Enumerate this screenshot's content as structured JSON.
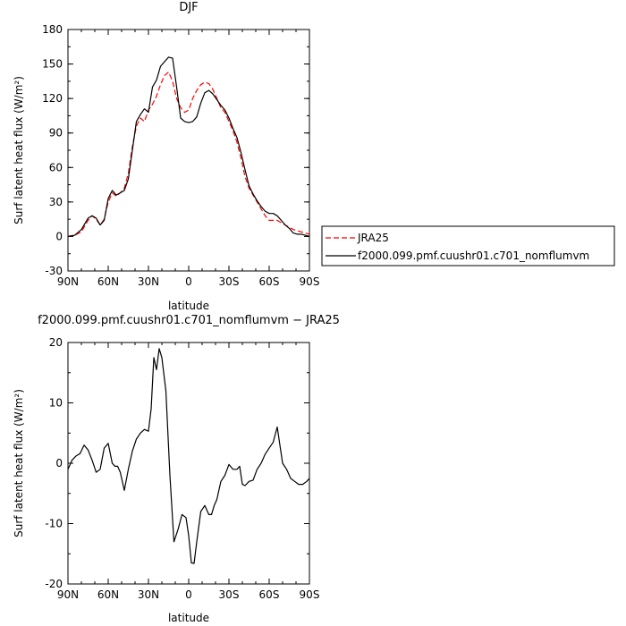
{
  "chart_data": [
    {
      "type": "line",
      "title": "DJF",
      "xlabel": "latitude",
      "ylabel": "Surf latent heat flux (W/m²)",
      "xlim": [
        90,
        -90
      ],
      "ylim": [
        -30,
        180
      ],
      "yticks": [
        -30,
        0,
        30,
        60,
        90,
        120,
        150,
        180
      ],
      "xticks": [
        90,
        60,
        30,
        0,
        -30,
        -60,
        -90
      ],
      "xtick_labels": [
        "90N",
        "60N",
        "30N",
        "0",
        "30S",
        "60S",
        "90S"
      ],
      "legend_position": "right",
      "series": [
        {
          "name": "JRA25",
          "color": "#ff0000",
          "dash": "dashed",
          "x": [
            90,
            85,
            80,
            75,
            72,
            69,
            66,
            63,
            60,
            57,
            54,
            51,
            48,
            45,
            42,
            39,
            36,
            33,
            30,
            27,
            24,
            21,
            18,
            15,
            12,
            9,
            6,
            3,
            0,
            -3,
            -6,
            -9,
            -12,
            -15,
            -18,
            -21,
            -24,
            -27,
            -30,
            -33,
            -36,
            -39,
            -42,
            -45,
            -48,
            -51,
            -54,
            -57,
            -60,
            -63,
            -66,
            -69,
            -72,
            -75,
            -78,
            -81,
            -84,
            -87,
            -90
          ],
          "y": [
            0,
            1,
            4,
            14,
            18,
            15,
            10,
            15,
            30,
            38,
            35,
            38,
            42,
            55,
            78,
            96,
            103,
            100,
            110,
            115,
            122,
            132,
            140,
            143,
            135,
            120,
            112,
            108,
            110,
            120,
            127,
            132,
            134,
            133,
            128,
            120,
            112,
            108,
            100,
            92,
            82,
            68,
            52,
            42,
            36,
            30,
            24,
            18,
            14,
            14,
            14,
            12,
            10,
            8,
            6,
            5,
            4,
            3,
            2
          ]
        },
        {
          "name": "f2000.099.pmf.cuushr01.c701_nomflumvm",
          "color": "#000000",
          "dash": "solid",
          "x": [
            90,
            85,
            80,
            75,
            72,
            69,
            66,
            63,
            60,
            57,
            54,
            51,
            48,
            45,
            42,
            39,
            36,
            33,
            30,
            27,
            24,
            21,
            18,
            15,
            12,
            9,
            6,
            3,
            0,
            -3,
            -6,
            -9,
            -12,
            -15,
            -18,
            -21,
            -24,
            -27,
            -30,
            -33,
            -36,
            -39,
            -42,
            -45,
            -48,
            -51,
            -54,
            -57,
            -60,
            -63,
            -66,
            -69,
            -72,
            -75,
            -78,
            -81,
            -84,
            -87,
            -90
          ],
          "y": [
            0,
            1,
            6,
            16,
            18,
            16,
            10,
            14,
            33,
            40,
            36,
            38,
            40,
            50,
            75,
            100,
            106,
            111,
            108,
            130,
            136,
            148,
            152,
            156,
            155,
            130,
            103,
            100,
            99,
            100,
            104,
            116,
            125,
            127,
            124,
            119,
            114,
            110,
            103,
            94,
            86,
            73,
            58,
            44,
            37,
            31,
            26,
            22,
            20,
            20,
            18,
            14,
            10,
            7,
            3,
            2,
            2,
            1,
            0
          ]
        }
      ]
    },
    {
      "type": "line",
      "title": "f2000.099.pmf.cuushr01.c701_nomflumvm − JRA25",
      "xlabel": "latitude",
      "ylabel": "Surf latent heat flux (W/m²)",
      "xlim": [
        90,
        -90
      ],
      "ylim": [
        -20,
        20
      ],
      "yticks": [
        -20,
        -10,
        0,
        10,
        20
      ],
      "xticks": [
        90,
        60,
        30,
        0,
        -30,
        -60,
        -90
      ],
      "xtick_labels": [
        "90N",
        "60N",
        "30N",
        "0",
        "30S",
        "60S",
        "90S"
      ],
      "series": [
        {
          "color": "#000000",
          "dash": "solid",
          "x": [
            90,
            87,
            84,
            81,
            78,
            75,
            72,
            69,
            66,
            63,
            60,
            57,
            55,
            53,
            51,
            48,
            45,
            42,
            39,
            36,
            33,
            30,
            28,
            26,
            24,
            22,
            20,
            17,
            14,
            11,
            8,
            5,
            2,
            0,
            -2,
            -4,
            -6,
            -9,
            -12,
            -15,
            -17,
            -19,
            -21,
            -24,
            -27,
            -30,
            -33,
            -36,
            -38,
            -40,
            -42,
            -45,
            -48,
            -51,
            -54,
            -57,
            -60,
            -63,
            -66,
            -68,
            -70,
            -73,
            -76,
            -79,
            -82,
            -85,
            -88,
            -90
          ],
          "y": [
            -1,
            0.5,
            1.2,
            1.6,
            3,
            2.2,
            0.5,
            -1.5,
            -1,
            2.5,
            3.3,
            0,
            -0.5,
            -0.5,
            -1.5,
            -4.5,
            -1,
            2,
            4,
            5,
            5.6,
            5.3,
            9,
            17.5,
            15.5,
            19,
            17.5,
            12,
            -2,
            -13,
            -11,
            -8.5,
            -9,
            -12,
            -16.5,
            -16.6,
            -13,
            -8,
            -7,
            -8.5,
            -8.5,
            -7,
            -6,
            -3,
            -2,
            -0.2,
            -1,
            -1,
            -0.5,
            -3.5,
            -3.7,
            -3,
            -2.8,
            -1,
            0,
            1.5,
            2.5,
            3.5,
            6,
            3,
            0,
            -1,
            -2.5,
            -3,
            -3.5,
            -3.5,
            -3,
            -2.5
          ]
        }
      ]
    }
  ]
}
